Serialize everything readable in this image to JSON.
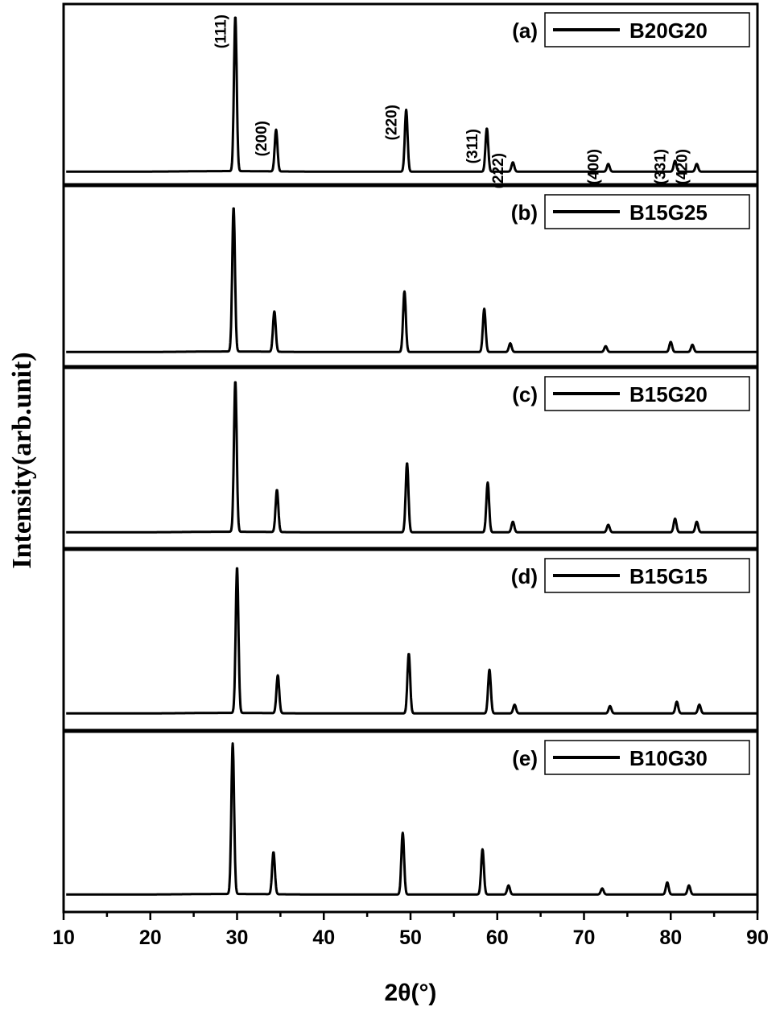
{
  "chart_data": {
    "type": "line",
    "xlabel": "2θ(°)",
    "ylabel": "Intensity(arb.unit)",
    "xlim": [
      10,
      90
    ],
    "xticks": [
      10,
      20,
      30,
      40,
      50,
      60,
      70,
      80,
      90
    ],
    "xtick_labels": [
      "10",
      "20",
      "30",
      "40",
      "50",
      "60",
      "70",
      "80",
      "90"
    ],
    "stacked_panels": true,
    "legend_position": "top-right of each panel",
    "series": [
      {
        "panel_label": "(a)",
        "name": "B20G20",
        "peaks": [
          {
            "x": 29.8,
            "y": 100
          },
          {
            "x": 34.5,
            "y": 27
          },
          {
            "x": 49.5,
            "y": 40
          },
          {
            "x": 58.8,
            "y": 28
          },
          {
            "x": 61.8,
            "y": 6
          },
          {
            "x": 72.8,
            "y": 5
          },
          {
            "x": 80.5,
            "y": 7
          },
          {
            "x": 83.0,
            "y": 5
          }
        ]
      },
      {
        "panel_label": "(b)",
        "name": "B15G25",
        "peaks": [
          {
            "x": 29.6,
            "y": 100
          },
          {
            "x": 34.3,
            "y": 28
          },
          {
            "x": 49.3,
            "y": 42
          },
          {
            "x": 58.5,
            "y": 30
          },
          {
            "x": 61.5,
            "y": 6
          },
          {
            "x": 72.5,
            "y": 4
          },
          {
            "x": 80.0,
            "y": 7
          },
          {
            "x": 82.5,
            "y": 5
          }
        ]
      },
      {
        "panel_label": "(c)",
        "name": "B15G20",
        "peaks": [
          {
            "x": 29.8,
            "y": 100
          },
          {
            "x": 34.6,
            "y": 28
          },
          {
            "x": 49.6,
            "y": 46
          },
          {
            "x": 58.9,
            "y": 33
          },
          {
            "x": 61.8,
            "y": 7
          },
          {
            "x": 72.8,
            "y": 5
          },
          {
            "x": 80.5,
            "y": 9
          },
          {
            "x": 83.0,
            "y": 7
          }
        ]
      },
      {
        "panel_label": "(d)",
        "name": "B15G15",
        "peaks": [
          {
            "x": 30.0,
            "y": 100
          },
          {
            "x": 34.7,
            "y": 26
          },
          {
            "x": 49.8,
            "y": 41
          },
          {
            "x": 59.1,
            "y": 30
          },
          {
            "x": 62.0,
            "y": 6
          },
          {
            "x": 73.0,
            "y": 5
          },
          {
            "x": 80.7,
            "y": 8
          },
          {
            "x": 83.3,
            "y": 6
          }
        ]
      },
      {
        "panel_label": "(e)",
        "name": "B10G30",
        "peaks": [
          {
            "x": 29.5,
            "y": 100
          },
          {
            "x": 34.2,
            "y": 28
          },
          {
            "x": 49.1,
            "y": 41
          },
          {
            "x": 58.3,
            "y": 30
          },
          {
            "x": 61.3,
            "y": 6
          },
          {
            "x": 72.1,
            "y": 4
          },
          {
            "x": 79.6,
            "y": 8
          },
          {
            "x": 82.1,
            "y": 6
          }
        ]
      }
    ],
    "hkl_annotations": [
      {
        "label": "(111)",
        "x": 29.8
      },
      {
        "label": "(200)",
        "x": 34.5
      },
      {
        "label": "(220)",
        "x": 49.5
      },
      {
        "label": "(311)",
        "x": 58.8
      },
      {
        "label": "(222)",
        "x": 61.8
      },
      {
        "label": "(400)",
        "x": 72.8
      },
      {
        "label": "(331)",
        "x": 80.5
      },
      {
        "label": "(420)",
        "x": 83.0
      }
    ]
  }
}
